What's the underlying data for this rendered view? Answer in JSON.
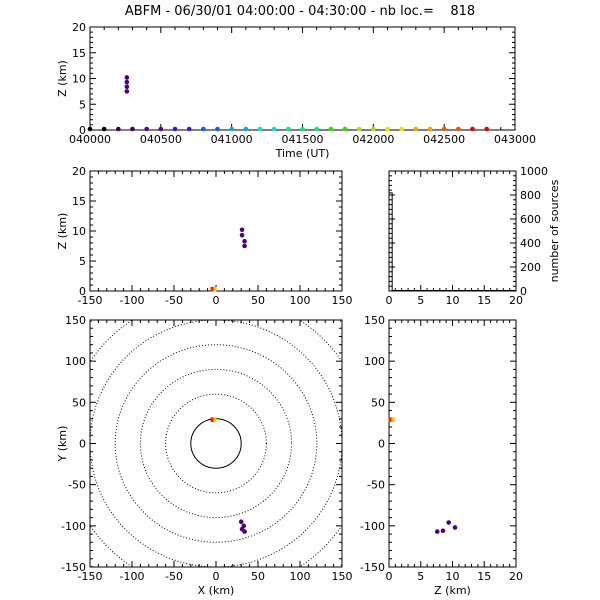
{
  "title": "ABFM - 06/30/01 04:00:00 - 04:30:00 - nb loc.=    818",
  "colors": {
    "time_gradient": [
      "#000000",
      "#3a0060",
      "#5a0096",
      "#2a1fd8",
      "#0060ff",
      "#00a6ff",
      "#00e0e0",
      "#00ee80",
      "#30e000",
      "#a0e800",
      "#f0e000",
      "#ffa000",
      "#ff5000",
      "#e00000"
    ],
    "source": "#4b0082",
    "origin_a": "#ff2000",
    "origin_b": "#ffd000",
    "grid": "#000000"
  },
  "chart_data": [
    {
      "id": "time_height",
      "type": "scatter",
      "xlabel": "Time (UT)",
      "ylabel": "Z (km)",
      "xlim": [
        40000,
        43000
      ],
      "ylim": [
        0,
        20
      ],
      "xticks": [
        "040000",
        "040500",
        "041000",
        "041500",
        "042000",
        "042500",
        "043000"
      ],
      "yticks": [
        "0",
        "5",
        "10",
        "15",
        "20"
      ],
      "time_markers_x": [
        40000,
        40100,
        40200,
        40300,
        40400,
        40500,
        40600,
        40700,
        40800,
        40900,
        41000,
        41100,
        41200,
        41300,
        41400,
        41500,
        41600,
        41700,
        41800,
        41900,
        42000,
        42100,
        42200,
        42300,
        42400,
        42500,
        42600,
        42700,
        42800
      ],
      "points": [
        {
          "x": 40260,
          "y": 10.2
        },
        {
          "x": 40260,
          "y": 9.3
        },
        {
          "x": 40260,
          "y": 8.4
        },
        {
          "x": 40260,
          "y": 7.5
        }
      ]
    },
    {
      "id": "xz",
      "type": "scatter",
      "xlabel": "",
      "ylabel": "Z (km)",
      "xlim": [
        -150,
        150
      ],
      "ylim": [
        0,
        20
      ],
      "xticks": [
        "-150",
        "-100",
        "-50",
        "0",
        "50",
        "100",
        "150"
      ],
      "yticks": [
        "0",
        "5",
        "10",
        "15",
        "20"
      ],
      "points": [
        {
          "x": 31,
          "y": 10.2
        },
        {
          "x": 31,
          "y": 9.3
        },
        {
          "x": 34,
          "y": 8.3
        },
        {
          "x": 34,
          "y": 7.5
        }
      ],
      "origin_points": [
        {
          "x": -3,
          "y": 0.3
        }
      ]
    },
    {
      "id": "histogram",
      "type": "bar",
      "ylabel": "number of sources",
      "xlim": [
        0,
        20
      ],
      "ylim": [
        0,
        1000
      ],
      "xticks": [
        "0",
        "5",
        "10",
        "15",
        "20"
      ],
      "yticks": [
        "0",
        "200",
        "400",
        "600",
        "800",
        "1000"
      ],
      "bins": [
        {
          "x0": 0,
          "x1": 0.5,
          "count": 818
        },
        {
          "x0": 0.5,
          "x1": 20,
          "count": 4
        }
      ]
    },
    {
      "id": "xy",
      "type": "scatter",
      "xlabel": "X (km)",
      "ylabel": "Y (km)",
      "xlim": [
        -150,
        150
      ],
      "ylim": [
        -150,
        150
      ],
      "xticks": [
        "-150",
        "-100",
        "-50",
        "0",
        "50",
        "100",
        "150"
      ],
      "yticks": [
        "-150",
        "-100",
        "-50",
        "0",
        "50",
        "100",
        "150"
      ],
      "range_rings_km": [
        30,
        60,
        90,
        120,
        150,
        180,
        210
      ],
      "points": [
        {
          "x": 30,
          "y": -95
        },
        {
          "x": 31,
          "y": -104
        },
        {
          "x": 34,
          "y": -107
        },
        {
          "x": 33,
          "y": -100
        }
      ],
      "origin_points": [
        {
          "x": -3,
          "y": 29
        }
      ]
    },
    {
      "id": "zy",
      "type": "scatter",
      "xlabel": "Z (km)",
      "ylabel": "",
      "xlim": [
        0,
        20
      ],
      "ylim": [
        -150,
        150
      ],
      "xticks": [
        "0",
        "5",
        "10",
        "15",
        "20"
      ],
      "yticks": [
        "-150",
        "-100",
        "-50",
        "0",
        "50",
        "100",
        "150"
      ],
      "points": [
        {
          "x": 7.6,
          "y": -107
        },
        {
          "x": 8.5,
          "y": -106
        },
        {
          "x": 9.4,
          "y": -96
        },
        {
          "x": 10.4,
          "y": -102
        }
      ],
      "origin_points": [
        {
          "x": 0.4,
          "y": 29
        }
      ]
    }
  ]
}
